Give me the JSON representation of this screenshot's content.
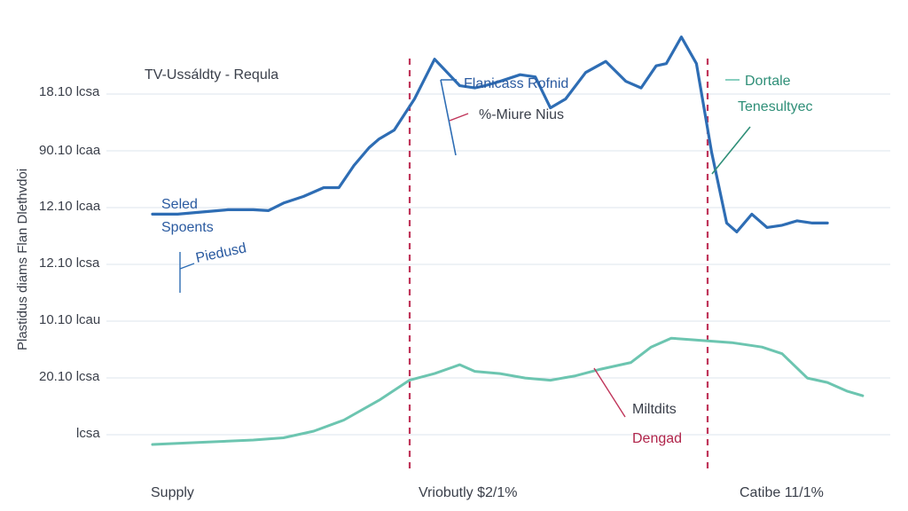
{
  "chart_data": {
    "type": "line",
    "title": "TV-Ussáldty - Requla",
    "ylabel": "Plastidus diams Flan Dlethvdoi",
    "y_ticks": [
      "18.10 lcsa",
      "90.10 lcaa",
      "12.10 lcaa",
      "12.10 lcsa",
      "10.10 lcau",
      "20.10 lcsa",
      "lcsa"
    ],
    "x_labels": [
      "Supply",
      "Vriobutly $2/1%",
      "Catibe 11/1%"
    ],
    "grid": true,
    "series": [
      {
        "color": "#2e6db4",
        "points": [
          [
            0,
            5.2
          ],
          [
            0.5,
            5.2
          ],
          [
            1,
            5.25
          ],
          [
            1.5,
            5.3
          ],
          [
            2,
            5.3
          ],
          [
            2.3,
            5.28
          ],
          [
            2.6,
            5.45
          ],
          [
            3,
            5.6
          ],
          [
            3.4,
            5.8
          ],
          [
            3.7,
            5.8
          ],
          [
            4,
            6.3
          ],
          [
            4.3,
            6.7
          ],
          [
            4.5,
            6.9
          ],
          [
            4.8,
            7.1
          ],
          [
            5.2,
            7.8
          ],
          [
            5.6,
            8.7
          ],
          [
            6.1,
            8.1
          ],
          [
            6.4,
            8.05
          ],
          [
            6.6,
            8.1
          ],
          [
            6.9,
            8.2
          ],
          [
            7.3,
            8.35
          ],
          [
            7.6,
            8.3
          ],
          [
            7.9,
            7.6
          ],
          [
            8.2,
            7.8
          ],
          [
            8.6,
            8.4
          ],
          [
            9,
            8.65
          ],
          [
            9.4,
            8.2
          ],
          [
            9.7,
            8.05
          ],
          [
            10,
            8.55
          ],
          [
            10.2,
            8.6
          ],
          [
            10.5,
            9.2
          ],
          [
            10.8,
            8.6
          ],
          [
            11.1,
            6.6
          ],
          [
            11.4,
            5.0
          ],
          [
            11.6,
            4.8
          ],
          [
            11.9,
            5.2
          ],
          [
            12.2,
            4.9
          ],
          [
            12.5,
            4.95
          ],
          [
            12.8,
            5.05
          ],
          [
            13.1,
            5.0
          ],
          [
            13.4,
            5.0
          ]
        ]
      },
      {
        "color": "#6cc5b0",
        "points": [
          [
            0,
            0.0
          ],
          [
            1,
            0.05
          ],
          [
            2,
            0.1
          ],
          [
            2.6,
            0.15
          ],
          [
            3.2,
            0.3
          ],
          [
            3.8,
            0.55
          ],
          [
            4.5,
            1.0
          ],
          [
            5.1,
            1.45
          ],
          [
            5.6,
            1.6
          ],
          [
            6.1,
            1.8
          ],
          [
            6.4,
            1.65
          ],
          [
            6.9,
            1.6
          ],
          [
            7.4,
            1.5
          ],
          [
            7.9,
            1.45
          ],
          [
            8.4,
            1.55
          ],
          [
            8.9,
            1.7
          ],
          [
            9.5,
            1.85
          ],
          [
            9.9,
            2.2
          ],
          [
            10.3,
            2.4
          ],
          [
            10.9,
            2.35
          ],
          [
            11.5,
            2.3
          ],
          [
            12.1,
            2.2
          ],
          [
            12.5,
            2.05
          ],
          [
            13,
            1.5
          ],
          [
            13.4,
            1.4
          ],
          [
            13.8,
            1.2
          ],
          [
            14.1,
            1.1
          ]
        ]
      }
    ],
    "markers": [
      {
        "type": "vertical-dashed",
        "color": "#c0355a",
        "position": "x-boundary-1"
      },
      {
        "type": "vertical-dashed",
        "color": "#c0355a",
        "position": "x-boundary-2"
      }
    ],
    "annotations": [
      "Flanicass Rofnid",
      "%-Miure Nius",
      "Dortale",
      "Tenesultyec",
      "Seled",
      "Spoents",
      "Piedusd",
      "Miltdits",
      "Dengad"
    ]
  },
  "colors": {
    "grid": "#dde4ee",
    "blue": "#2e6db4",
    "teal": "#6cc5b0",
    "marker": "#c0355a",
    "text": "#3a3f4a"
  }
}
